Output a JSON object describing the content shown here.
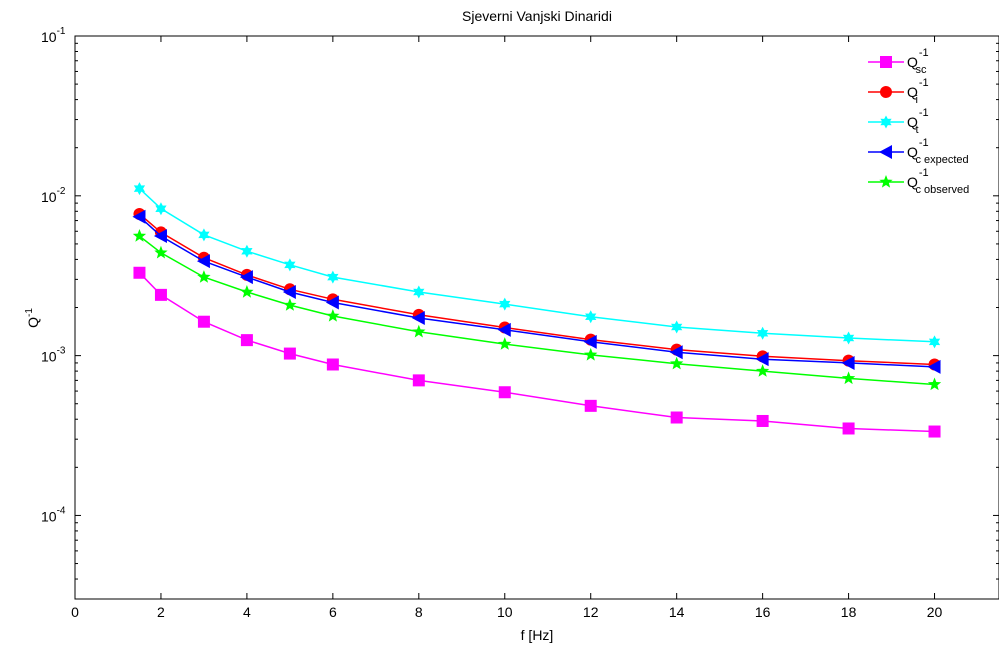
{
  "chart_data": {
    "type": "line",
    "title": "Sjeverni Vanjski Dinaridi",
    "xlabel": "f [Hz]",
    "ylabel_base": "Q",
    "ylabel_exp": "-1",
    "xlim": [
      0,
      21.5
    ],
    "ylim": [
      3e-05,
      0.1
    ],
    "yscale": "log",
    "grid": false,
    "legend_position": "top-right",
    "x_ticks": [
      0,
      2,
      4,
      6,
      8,
      10,
      12,
      14,
      16,
      18,
      20
    ],
    "x_tick_labels": [
      "0",
      "2",
      "4",
      "6",
      "8",
      "10",
      "12",
      "14",
      "16",
      "18",
      "20"
    ],
    "y_ticks": [
      {
        "value": 0.1,
        "base": "10",
        "exp": "-1"
      },
      {
        "value": 0.01,
        "base": "10",
        "exp": "-2"
      },
      {
        "value": 0.001,
        "base": "10",
        "exp": "-3"
      },
      {
        "value": 0.0001,
        "base": "10",
        "exp": "-4"
      }
    ],
    "x": [
      1.5,
      2,
      3,
      4,
      5,
      6,
      8,
      10,
      12,
      14,
      16,
      18,
      20
    ],
    "series": [
      {
        "name": "Q",
        "name_sup": "-1",
        "name_sub": "sc",
        "color": "#ff00ff",
        "marker": "square",
        "values": [
          0.0033,
          0.0024,
          0.00163,
          0.00125,
          0.00103,
          0.00088,
          0.0007,
          0.00059,
          0.000485,
          0.00041,
          0.00039,
          0.00035,
          0.000335
        ]
      },
      {
        "name": "Q",
        "name_sup": "-1",
        "name_sub": "i",
        "color": "#ff0000",
        "marker": "circle",
        "values": [
          0.0077,
          0.0059,
          0.0041,
          0.0032,
          0.0026,
          0.00225,
          0.0018,
          0.0015,
          0.00126,
          0.00109,
          0.00099,
          0.00093,
          0.00088
        ]
      },
      {
        "name": "Q",
        "name_sup": "-1",
        "name_sub": "t",
        "color": "#00ffff",
        "marker": "asterisk",
        "values": [
          0.0111,
          0.0083,
          0.0057,
          0.0045,
          0.0037,
          0.0031,
          0.0025,
          0.0021,
          0.00175,
          0.00151,
          0.00138,
          0.00129,
          0.00122
        ]
      },
      {
        "name": "Q",
        "name_sup": "-1",
        "name_sub": "c expected",
        "color": "#0000ff",
        "marker": "triangle-left",
        "values": [
          0.0074,
          0.0056,
          0.0039,
          0.0031,
          0.0025,
          0.00215,
          0.00172,
          0.00145,
          0.00122,
          0.00105,
          0.00095,
          0.0009,
          0.00085
        ]
      },
      {
        "name": "Q",
        "name_sup": "-1",
        "name_sub": "c observed",
        "color": "#00ff00",
        "marker": "star",
        "values": [
          0.0056,
          0.0044,
          0.0031,
          0.0025,
          0.00207,
          0.00177,
          0.00141,
          0.00118,
          0.00101,
          0.00089,
          0.0008,
          0.00072,
          0.00066
        ]
      }
    ]
  }
}
